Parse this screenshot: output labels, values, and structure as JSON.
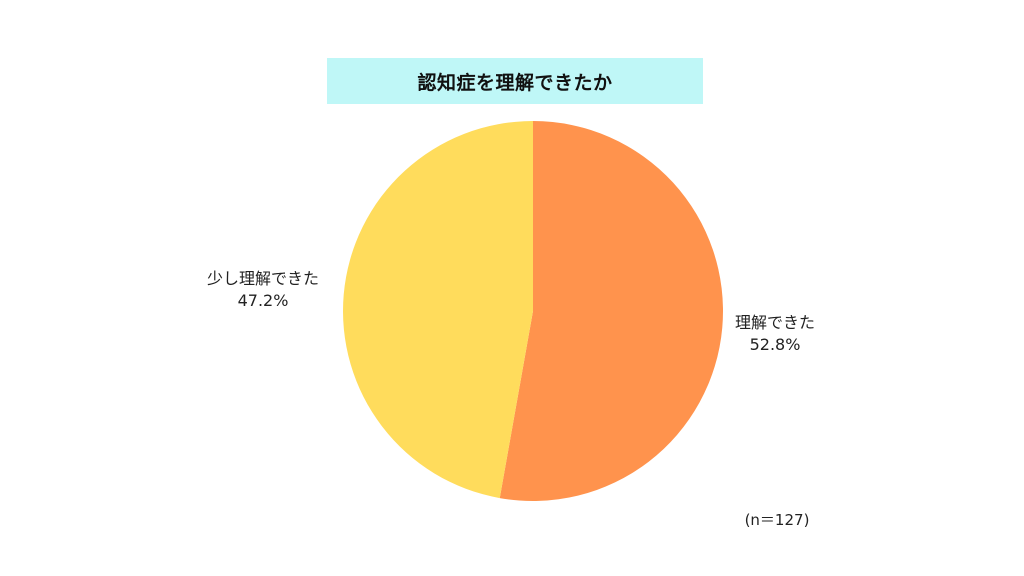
{
  "chart_data": {
    "type": "pie",
    "title": "認知症を理解できたか",
    "categories": [
      "理解できた",
      "少し理解できた"
    ],
    "values": [
      52.8,
      47.2
    ],
    "value_labels": [
      "52.8%",
      "47.2%"
    ],
    "colors": [
      "#FF934D",
      "#FFDC5C"
    ],
    "note": "(n＝127)",
    "title_background": "#BFF7F7",
    "start_angle": "12 o'clock",
    "direction": "clockwise"
  }
}
